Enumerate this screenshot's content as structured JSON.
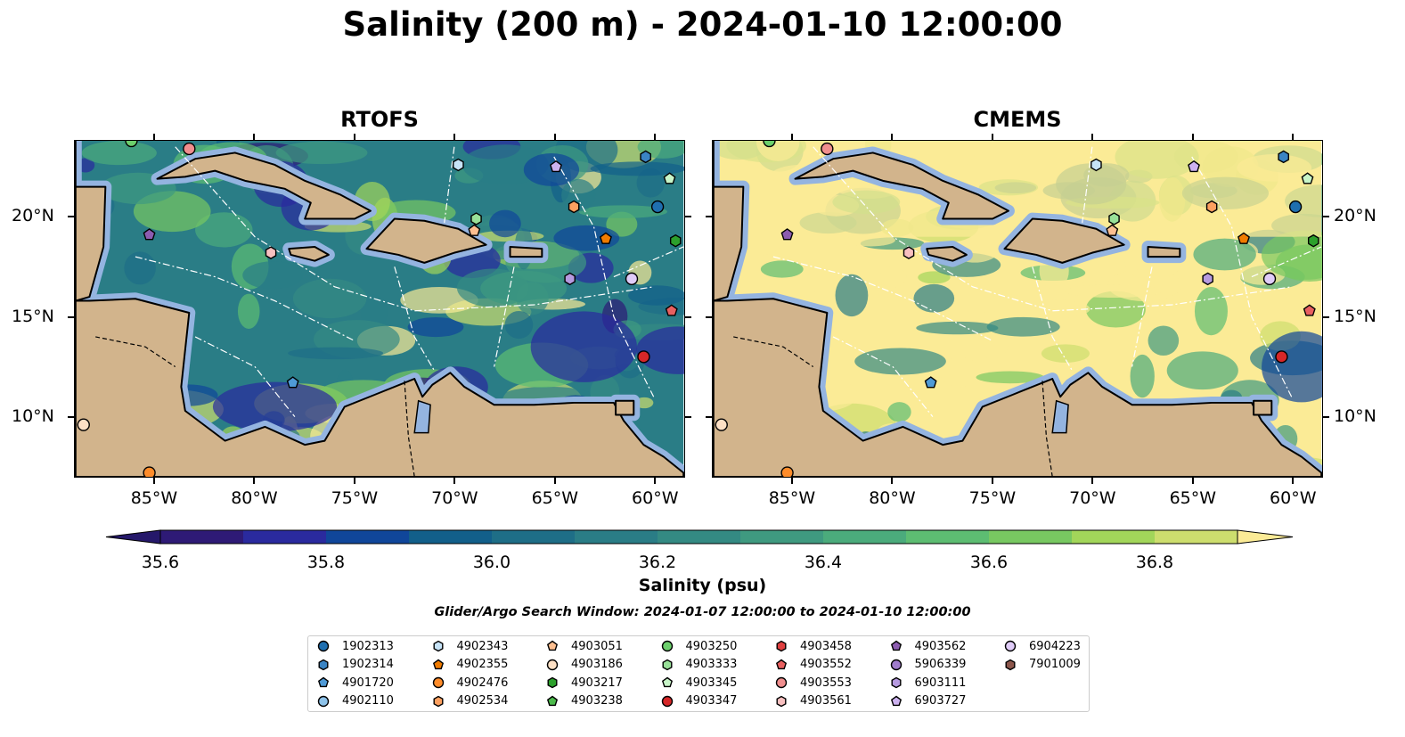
{
  "title": "Salinity (200 m) - 2024-01-10 12:00:00",
  "panels": [
    {
      "title": "RTOFS",
      "style": "rtofs"
    },
    {
      "title": "CMEMS",
      "style": "cmems"
    }
  ],
  "axes": {
    "lon_ticks": [
      {
        "value": -85,
        "label": "85°W"
      },
      {
        "value": -80,
        "label": "80°W"
      },
      {
        "value": -75,
        "label": "75°W"
      },
      {
        "value": -70,
        "label": "70°W"
      },
      {
        "value": -65,
        "label": "65°W"
      },
      {
        "value": -60,
        "label": "60°W"
      }
    ],
    "lat_ticks": [
      {
        "value": 20,
        "label": "20°N"
      },
      {
        "value": 15,
        "label": "15°N"
      },
      {
        "value": 10,
        "label": "10°N"
      }
    ],
    "extent": {
      "lon_min": -89,
      "lon_max": -58.5,
      "lat_min": 7,
      "lat_max": 23.8
    }
  },
  "colorbar": {
    "label": "Salinity (psu)",
    "min": 35.6,
    "max": 36.9,
    "step": 0.1,
    "colors": [
      "#2e1a76",
      "#2a2a9e",
      "#10469a",
      "#125f8a",
      "#1e6e87",
      "#2a7d86",
      "#348a83",
      "#3f9a80",
      "#4bab7c",
      "#5dbd72",
      "#78c861",
      "#a2d65a",
      "#cdde6e"
    ],
    "under": "#25186a",
    "over": "#fbeb96",
    "ticks": [
      {
        "value": 35.6,
        "label": "35.6"
      },
      {
        "value": 35.8,
        "label": "35.8"
      },
      {
        "value": 36.0,
        "label": "36.0"
      },
      {
        "value": 36.2,
        "label": "36.2"
      },
      {
        "value": 36.4,
        "label": "36.4"
      },
      {
        "value": 36.6,
        "label": "36.6"
      },
      {
        "value": 36.8,
        "label": "36.8"
      }
    ]
  },
  "search_window": "Glider/Argo Search Window: 2024-01-07 12:00:00 to 2024-01-10 12:00:00",
  "colors": {
    "land": "#d2b48c",
    "shelf": "#94b4e0",
    "pacific": "#25186a"
  },
  "floats": [
    {
      "id": "1902313",
      "shape": "circle",
      "color": "#1f6fb0",
      "lon": -59.8,
      "lat": 20.5
    },
    {
      "id": "1902314",
      "shape": "hexagon",
      "color": "#3a84c4",
      "lon": -60.4,
      "lat": 23.0
    },
    {
      "id": "4901720",
      "shape": "pentagon",
      "color": "#4f9ad6",
      "lon": -78.1,
      "lat": 11.7
    },
    {
      "id": "4902110",
      "shape": "circle",
      "color": "#8ec3ea",
      "lon": null,
      "lat": null
    },
    {
      "id": "4902343",
      "shape": "hexagon",
      "color": "#c6e3f7",
      "lon": -69.8,
      "lat": 22.6
    },
    {
      "id": "4902355",
      "shape": "pentagon",
      "color": "#f07b00",
      "lon": -62.4,
      "lat": 18.9
    },
    {
      "id": "4902476",
      "shape": "circle",
      "color": "#ff8c2a",
      "lon": -85.3,
      "lat": 7.2
    },
    {
      "id": "4902534",
      "shape": "hexagon",
      "color": "#fda060",
      "lon": -64.0,
      "lat": 20.5
    },
    {
      "id": "4903051",
      "shape": "pentagon",
      "color": "#fdbf90",
      "lon": -69.0,
      "lat": 19.3
    },
    {
      "id": "4903186",
      "shape": "circle",
      "color": "#fde0c5",
      "lon": -88.6,
      "lat": 9.6
    },
    {
      "id": "4903217",
      "shape": "hexagon",
      "color": "#2ca02c",
      "lon": -58.9,
      "lat": 18.8
    },
    {
      "id": "4903238",
      "shape": "pentagon",
      "color": "#4cbb4c",
      "lon": null,
      "lat": null
    },
    {
      "id": "4903250",
      "shape": "circle",
      "color": "#6ccf6c",
      "lon": -86.2,
      "lat": 23.8
    },
    {
      "id": "4903333",
      "shape": "hexagon",
      "color": "#98e098",
      "lon": -68.9,
      "lat": 19.9
    },
    {
      "id": "4903345",
      "shape": "pentagon",
      "color": "#c8f5c8",
      "lon": -59.2,
      "lat": 21.9
    },
    {
      "id": "4903347",
      "shape": "circle",
      "color": "#d62728",
      "lon": -60.5,
      "lat": 13.0
    },
    {
      "id": "4903458",
      "shape": "hexagon",
      "color": "#e04040",
      "lon": null,
      "lat": null
    },
    {
      "id": "4903552",
      "shape": "pentagon",
      "color": "#e86060",
      "lon": -59.1,
      "lat": 15.3
    },
    {
      "id": "4903553",
      "shape": "circle",
      "color": "#f08e8e",
      "lon": -83.3,
      "lat": 23.4
    },
    {
      "id": "4903561",
      "shape": "hexagon",
      "color": "#f8c0c0",
      "lon": -79.2,
      "lat": 18.2
    },
    {
      "id": "4903562",
      "shape": "pentagon",
      "color": "#8c5cb0",
      "lon": -85.3,
      "lat": 19.1
    },
    {
      "id": "5906339",
      "shape": "circle",
      "color": "#a07ccc",
      "lon": null,
      "lat": null
    },
    {
      "id": "6903111",
      "shape": "hexagon",
      "color": "#b69ae0",
      "lon": -64.2,
      "lat": 16.9
    },
    {
      "id": "6903727",
      "shape": "pentagon",
      "color": "#cdb2f0",
      "lon": -64.9,
      "lat": 22.5
    },
    {
      "id": "6904223",
      "shape": "circle",
      "color": "#e0ccf8",
      "lon": -61.1,
      "lat": 16.9
    },
    {
      "id": "7901009",
      "shape": "hexagon",
      "color": "#8c564b",
      "lon": null,
      "lat": null
    }
  ]
}
